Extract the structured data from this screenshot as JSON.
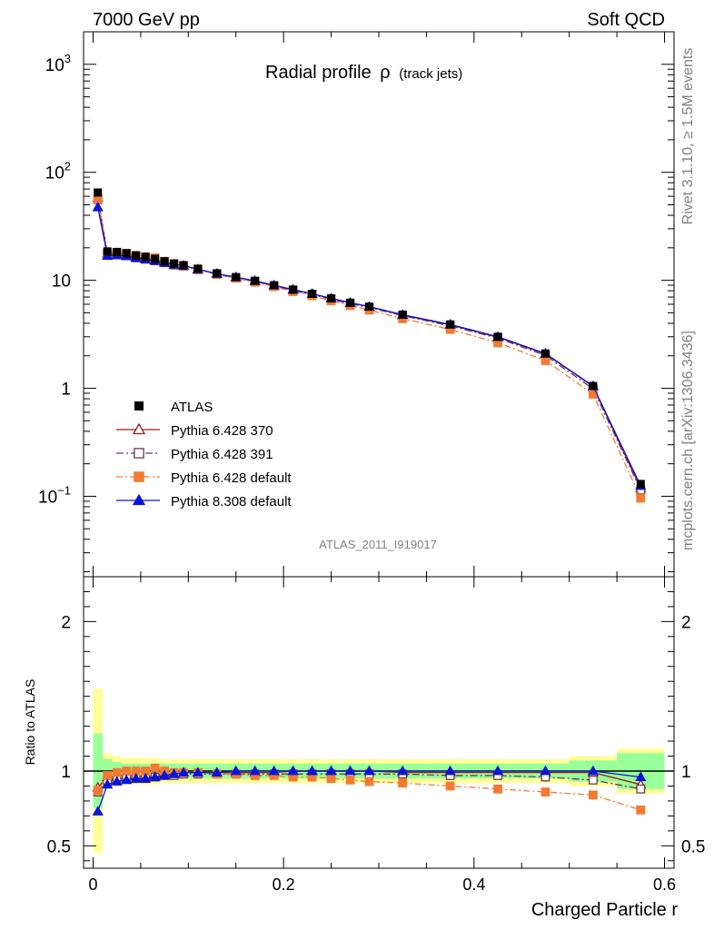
{
  "header": {
    "left": "7000 GeV pp",
    "right": "Soft QCD"
  },
  "side": {
    "rivet": "Rivet 3.1.10, ≥ 1.5M events",
    "source": "mcplots.cern.ch [arXiv:1306.3436]"
  },
  "chart_data": {
    "type": "scatter",
    "title": "Radial profile",
    "title_symbol": "ρ",
    "title_suffix": "(track jets)",
    "analysis_label": "ATLAS_2011_I919017",
    "xlabel": "Charged Particle r",
    "ylabel_ratio": "Ratio to ATLAS",
    "xlim": [
      -0.01,
      0.61
    ],
    "ylim": [
      0.018,
      2000
    ],
    "y_log": true,
    "ratio_ylim": [
      0.35,
      2.3
    ],
    "x_ticks": [
      "0",
      "0.2",
      "0.4",
      "0.6"
    ],
    "y_ticks": [
      {
        "v": 0.1,
        "base": "10",
        "exp": "−1"
      },
      {
        "v": 1,
        "base": "1",
        "exp": ""
      },
      {
        "v": 10,
        "base": "10",
        "exp": ""
      },
      {
        "v": 100,
        "base": "10",
        "exp": "2"
      },
      {
        "v": 1000,
        "base": "10",
        "exp": "3"
      }
    ],
    "ratio_ticks": [
      "0.5",
      "1",
      "2"
    ],
    "legend_position": "bottom-left",
    "x": [
      0.005,
      0.015,
      0.025,
      0.035,
      0.045,
      0.055,
      0.065,
      0.075,
      0.085,
      0.095,
      0.11,
      0.13,
      0.15,
      0.17,
      0.19,
      0.21,
      0.23,
      0.25,
      0.27,
      0.29,
      0.325,
      0.375,
      0.425,
      0.475,
      0.525,
      0.575
    ],
    "x_width": [
      0.005,
      0.005,
      0.005,
      0.005,
      0.005,
      0.005,
      0.005,
      0.005,
      0.005,
      0.005,
      0.01,
      0.01,
      0.01,
      0.01,
      0.01,
      0.01,
      0.01,
      0.01,
      0.01,
      0.01,
      0.025,
      0.025,
      0.025,
      0.025,
      0.025,
      0.025
    ],
    "data": {
      "name": "ATLAS",
      "values": [
        65,
        18.5,
        18.3,
        17.8,
        17.0,
        16.5,
        15.8,
        15.0,
        14.3,
        13.8,
        12.8,
        11.6,
        10.7,
        9.9,
        9.0,
        8.2,
        7.5,
        6.8,
        6.2,
        5.7,
        4.8,
        3.9,
        3.0,
        2.1,
        1.05,
        0.13
      ]
    },
    "band_inner": [
      0.25,
      0.08,
      0.06,
      0.05,
      0.05,
      0.05,
      0.05,
      0.05,
      0.05,
      0.05,
      0.05,
      0.05,
      0.05,
      0.05,
      0.05,
      0.05,
      0.05,
      0.05,
      0.05,
      0.05,
      0.05,
      0.05,
      0.05,
      0.05,
      0.07,
      0.12
    ],
    "band_outer": [
      0.55,
      0.12,
      0.1,
      0.09,
      0.09,
      0.09,
      0.09,
      0.08,
      0.08,
      0.08,
      0.08,
      0.08,
      0.08,
      0.08,
      0.08,
      0.08,
      0.08,
      0.08,
      0.08,
      0.08,
      0.08,
      0.08,
      0.08,
      0.08,
      0.1,
      0.15
    ],
    "series": [
      {
        "name": "Pythia 6.428 370",
        "color": "#9b1c1c",
        "marker": "open-triangle",
        "dash": "",
        "ratio": [
          0.89,
          0.96,
          0.97,
          0.97,
          0.97,
          0.96,
          0.97,
          0.98,
          0.98,
          0.99,
          0.99,
          0.99,
          0.99,
          0.99,
          0.99,
          1.0,
          1.0,
          1.0,
          1.0,
          1.0,
          0.99,
          0.99,
          0.99,
          0.99,
          0.99,
          0.91
        ]
      },
      {
        "name": "Pythia 6.428 391",
        "color": "#6b3a4a",
        "marker": "open-square",
        "dash": "8,3,2,3",
        "ratio": [
          0.86,
          0.93,
          0.95,
          0.95,
          0.95,
          0.95,
          0.96,
          0.97,
          0.97,
          0.98,
          0.98,
          0.98,
          0.98,
          0.98,
          0.98,
          0.98,
          0.98,
          0.98,
          0.98,
          0.98,
          0.98,
          0.97,
          0.97,
          0.96,
          0.94,
          0.88
        ]
      },
      {
        "name": "Pythia 6.428 default",
        "color": "#f37a31",
        "marker": "filled-square",
        "dash": "7,3,2,3",
        "ratio": [
          0.87,
          0.97,
          0.99,
          1.0,
          1.0,
          1.0,
          1.02,
          1.0,
          0.99,
          0.99,
          0.99,
          0.98,
          0.98,
          0.97,
          0.97,
          0.96,
          0.96,
          0.95,
          0.94,
          0.93,
          0.92,
          0.9,
          0.88,
          0.86,
          0.84,
          0.74
        ]
      },
      {
        "name": "Pythia 8.308 default",
        "color": "#0a14d8",
        "marker": "filled-triangle",
        "dash": "",
        "ratio": [
          0.73,
          0.91,
          0.93,
          0.94,
          0.95,
          0.95,
          0.96,
          0.97,
          0.98,
          0.99,
          0.99,
          0.99,
          1.0,
          1.0,
          1.0,
          1.0,
          1.0,
          1.0,
          1.0,
          1.0,
          1.0,
          1.0,
          1.0,
          1.0,
          1.0,
          0.96
        ]
      }
    ]
  }
}
